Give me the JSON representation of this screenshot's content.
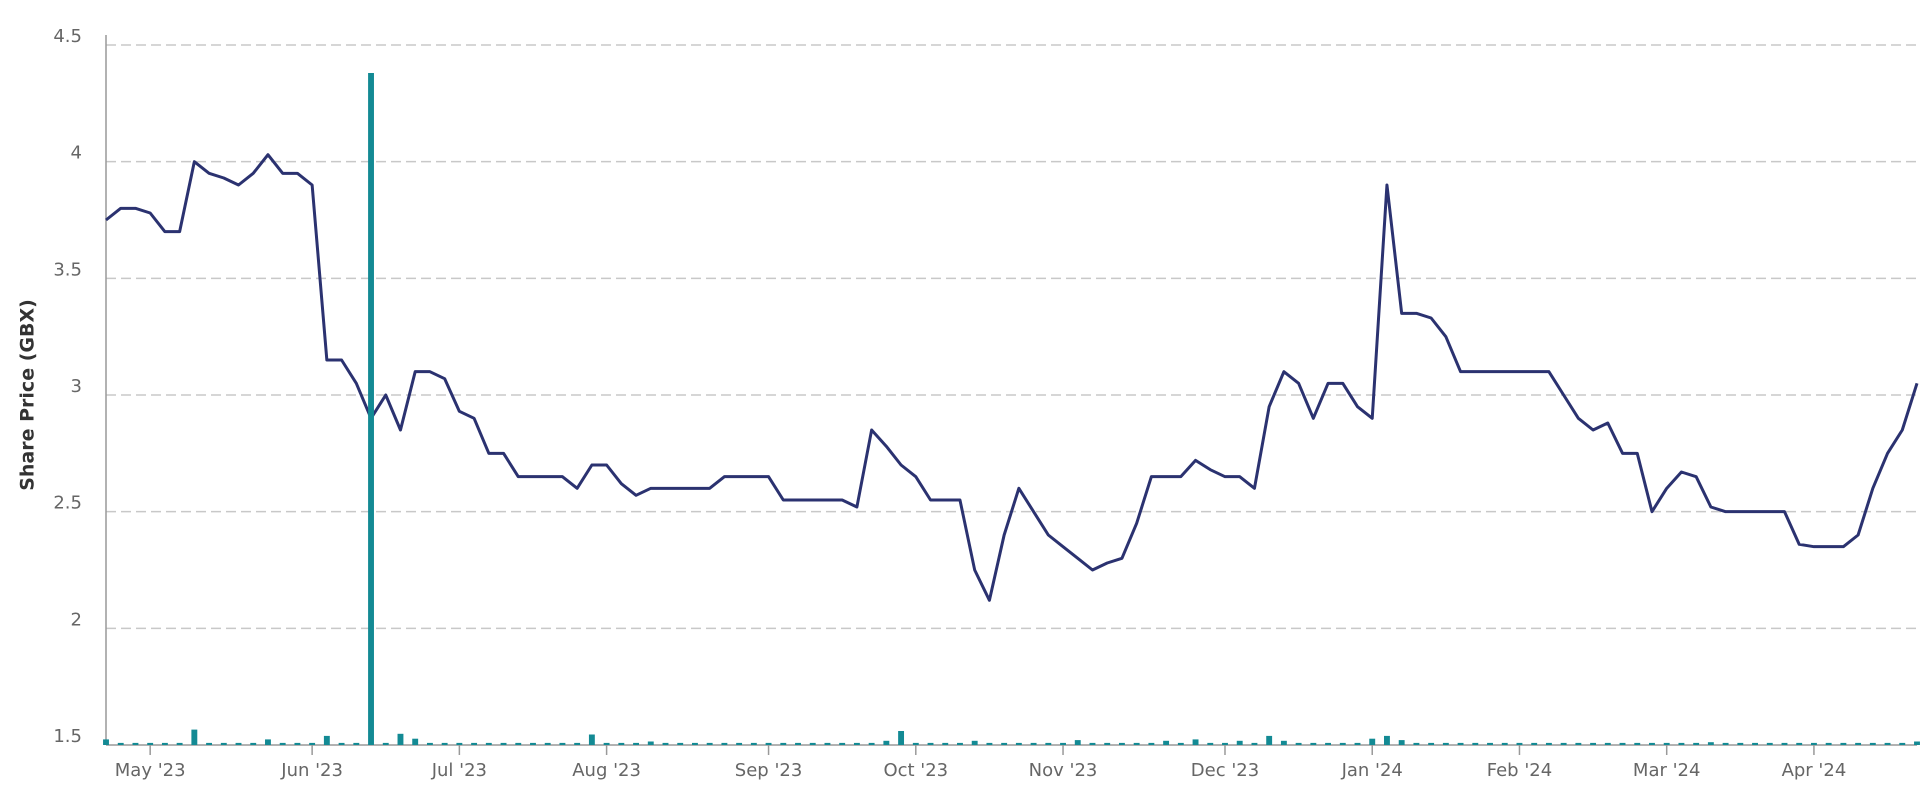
{
  "chart_data": {
    "type": "line",
    "ylabel": "Share Price (GBX)",
    "categories": [
      null,
      null,
      null,
      "May '23",
      null,
      null,
      null,
      null,
      null,
      null,
      null,
      null,
      null,
      null,
      "Jun '23",
      null,
      null,
      null,
      null,
      null,
      null,
      null,
      null,
      null,
      "Jul '23",
      null,
      null,
      null,
      null,
      null,
      null,
      null,
      null,
      null,
      "Aug '23",
      null,
      null,
      null,
      null,
      null,
      null,
      null,
      null,
      null,
      null,
      "Sep '23",
      null,
      null,
      null,
      null,
      null,
      null,
      null,
      null,
      null,
      "Oct '23",
      null,
      null,
      null,
      null,
      null,
      null,
      null,
      null,
      null,
      "Nov '23",
      null,
      null,
      null,
      null,
      null,
      null,
      null,
      null,
      null,
      null,
      "Dec '23",
      null,
      null,
      null,
      null,
      null,
      null,
      null,
      null,
      null,
      "Jan '24",
      null,
      null,
      null,
      null,
      null,
      null,
      null,
      null,
      null,
      "Feb '24",
      null,
      null,
      null,
      null,
      null,
      null,
      null,
      null,
      null,
      "Mar '24",
      null,
      null,
      null,
      null,
      null,
      null,
      null,
      null,
      null,
      "Apr '24",
      null,
      null,
      null,
      null,
      null,
      null,
      null
    ],
    "series": [
      {
        "type": "line",
        "color": "#2b3270",
        "values": [
          3.75,
          3.8,
          3.8,
          3.78,
          3.7,
          3.7,
          4.0,
          3.95,
          3.93,
          3.9,
          3.95,
          4.03,
          3.95,
          3.95,
          3.9,
          3.15,
          3.15,
          3.05,
          2.9,
          3.0,
          2.85,
          3.1,
          3.1,
          3.07,
          2.93,
          2.9,
          2.75,
          2.75,
          2.65,
          2.65,
          2.65,
          2.65,
          2.6,
          2.7,
          2.7,
          2.62,
          2.57,
          2.6,
          2.6,
          2.6,
          2.6,
          2.6,
          2.65,
          2.65,
          2.65,
          2.65,
          2.55,
          2.55,
          2.55,
          2.55,
          2.55,
          2.52,
          2.85,
          2.78,
          2.7,
          2.65,
          2.55,
          2.55,
          2.55,
          2.25,
          2.12,
          2.4,
          2.6,
          2.5,
          2.4,
          2.35,
          2.3,
          2.25,
          2.28,
          2.3,
          2.45,
          2.65,
          2.65,
          2.65,
          2.72,
          2.68,
          2.65,
          2.65,
          2.6,
          2.95,
          3.1,
          3.05,
          2.9,
          3.05,
          3.05,
          2.95,
          2.9,
          3.9,
          3.35,
          3.35,
          3.33,
          3.25,
          3.1,
          3.1,
          3.1,
          3.1,
          3.1,
          3.1,
          3.1,
          3.0,
          2.9,
          2.85,
          2.88,
          2.75,
          2.75,
          2.5,
          2.6,
          2.67,
          2.65,
          2.52,
          2.5,
          2.5,
          2.5,
          2.5,
          2.5,
          2.36,
          2.35,
          2.35,
          2.35,
          2.4,
          2.6,
          2.75,
          2.85,
          3.05
        ]
      },
      {
        "type": "bar",
        "axis": "y2",
        "color": "#138a94",
        "values": [
          0.8,
          0.3,
          0.3,
          0.3,
          0.3,
          0.3,
          2.2,
          0.3,
          0.3,
          0.3,
          0.3,
          0.8,
          0.3,
          0.3,
          0.3,
          1.3,
          0.3,
          0.3,
          96,
          0.3,
          1.6,
          0.9,
          0.3,
          0.3,
          0.3,
          0.3,
          0.3,
          0.3,
          0.3,
          0.3,
          0.3,
          0.3,
          0.3,
          1.5,
          0.3,
          0.3,
          0.3,
          0.5,
          0.3,
          0.3,
          0.3,
          0.3,
          0.3,
          0.3,
          0.3,
          0.3,
          0.3,
          0.3,
          0.3,
          0.3,
          0.3,
          0.3,
          0.3,
          0.6,
          2.0,
          0.3,
          0.3,
          0.3,
          0.3,
          0.6,
          0.3,
          0.3,
          0.3,
          0.3,
          0.3,
          0.3,
          0.7,
          0.3,
          0.3,
          0.3,
          0.3,
          0.3,
          0.6,
          0.3,
          0.8,
          0.3,
          0.3,
          0.6,
          0.3,
          1.3,
          0.6,
          0.3,
          0.3,
          0.3,
          0.3,
          0.3,
          0.9,
          1.3,
          0.7,
          0.3,
          0.3,
          0.3,
          0.3,
          0.3,
          0.3,
          0.3,
          0.3,
          0.3,
          0.3,
          0.3,
          0.3,
          0.3,
          0.3,
          0.3,
          0.3,
          0.3,
          0.3,
          0.3,
          0.3,
          0.4,
          0.3,
          0.3,
          0.3,
          0.3,
          0.3,
          0.3,
          0.3,
          0.3,
          0.3,
          0.3,
          0.3,
          0.3,
          0.3,
          0.5
        ]
      }
    ],
    "ylim": [
      1.5,
      4.5
    ],
    "yticks": [
      1.5,
      2,
      2.5,
      3,
      3.5,
      4,
      4.5
    ],
    "y2lim": [
      0,
      100
    ],
    "grid": true
  }
}
